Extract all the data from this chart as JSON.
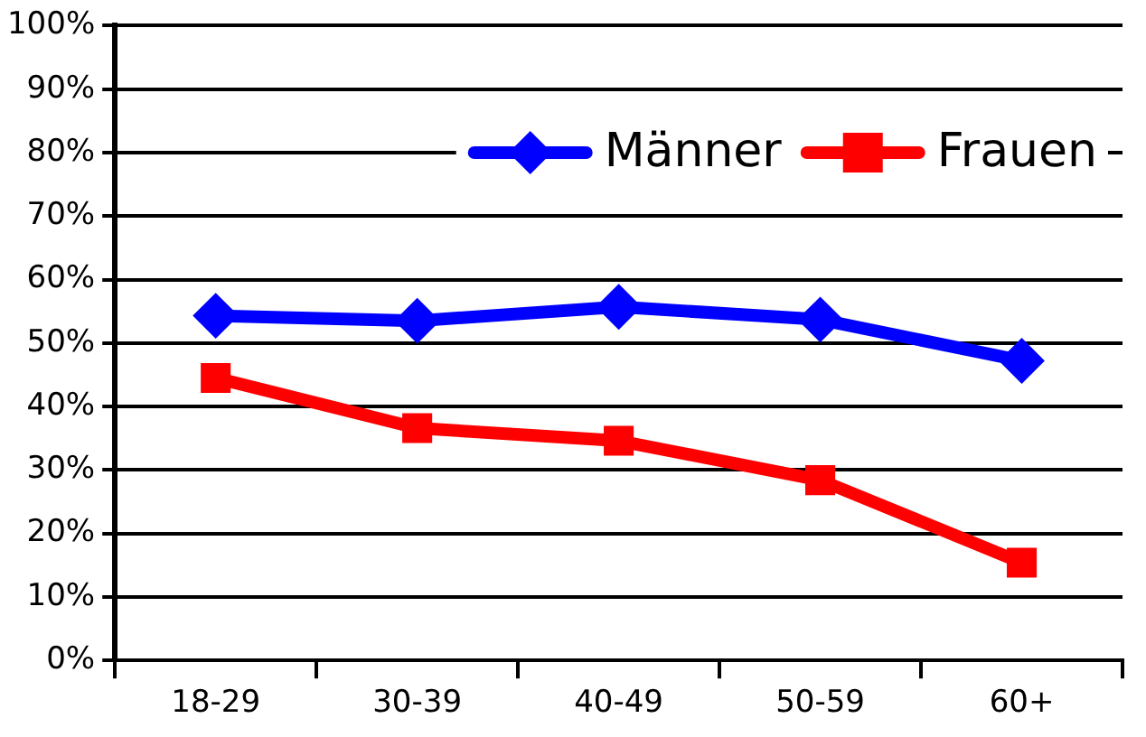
{
  "chart_data": {
    "type": "line",
    "categories": [
      "18-29",
      "30-39",
      "40-49",
      "50-59",
      "60+"
    ],
    "series": [
      {
        "name": "Männer",
        "color": "#0000ff",
        "values": [
          54.3,
          53.5,
          55.7,
          53.7,
          47.2
        ],
        "marker": "diamond"
      },
      {
        "name": "Frauen",
        "color": "#ff0000",
        "values": [
          44.5,
          36.6,
          34.6,
          28.4,
          15.4
        ],
        "marker": "square"
      }
    ],
    "ylim": [
      0,
      100
    ],
    "yticks": [
      {
        "value": 0,
        "label": "0%"
      },
      {
        "value": 10,
        "label": "10%"
      },
      {
        "value": 20,
        "label": "20%"
      },
      {
        "value": 30,
        "label": "30%"
      },
      {
        "value": 40,
        "label": "40%"
      },
      {
        "value": 50,
        "label": "50%"
      },
      {
        "value": 60,
        "label": "60%"
      },
      {
        "value": 70,
        "label": "70%"
      },
      {
        "value": 80,
        "label": "80%"
      },
      {
        "value": 90,
        "label": "90%"
      },
      {
        "value": 100,
        "label": "100%"
      }
    ],
    "grid": "y",
    "legend": "top right",
    "line_style": "solid"
  }
}
